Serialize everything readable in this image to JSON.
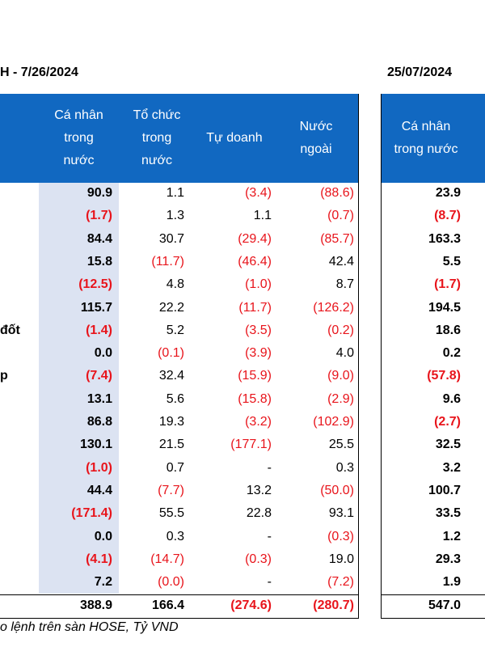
{
  "title_left": "H - 7/26/2024",
  "title_right": "25/07/2024",
  "headers_left": [
    "Cá nhân\ntrong\nnước",
    "Tổ chức\ntrong\nnước",
    "Tự doanh",
    "Nước\nngoài"
  ],
  "header_right": "Cá nhân\ntrong nước",
  "rows": [
    {
      "label": "",
      "c1": "90.9",
      "c2": "1.1",
      "c3": "(3.4)",
      "c4": "(88.6)",
      "c5": "23.9"
    },
    {
      "label": "",
      "c1": "(1.7)",
      "c2": "1.3",
      "c3": "1.1",
      "c4": "(0.7)",
      "c5": "(8.7)"
    },
    {
      "label": "",
      "c1": "84.4",
      "c2": "30.7",
      "c3": "(29.4)",
      "c4": "(85.7)",
      "c5": "163.3"
    },
    {
      "label": "",
      "c1": "15.8",
      "c2": "(11.7)",
      "c3": "(46.4)",
      "c4": "42.4",
      "c5": "5.5"
    },
    {
      "label": "",
      "c1": "(12.5)",
      "c2": "4.8",
      "c3": "(1.0)",
      "c4": "8.7",
      "c5": "(1.7)"
    },
    {
      "label": "",
      "c1": "115.7",
      "c2": "22.2",
      "c3": "(11.7)",
      "c4": "(126.2)",
      "c5": "194.5"
    },
    {
      "label": "đốt",
      "c1": "(1.4)",
      "c2": "5.2",
      "c3": "(3.5)",
      "c4": "(0.2)",
      "c5": "18.6"
    },
    {
      "label": "",
      "c1": "0.0",
      "c2": "(0.1)",
      "c3": "(3.9)",
      "c4": "4.0",
      "c5": "0.2"
    },
    {
      "label": "p",
      "c1": "(7.4)",
      "c2": "32.4",
      "c3": "(15.9)",
      "c4": "(9.0)",
      "c5": "(57.8)"
    },
    {
      "label": "",
      "c1": "13.1",
      "c2": "5.6",
      "c3": "(15.8)",
      "c4": "(2.9)",
      "c5": "9.6"
    },
    {
      "label": "",
      "c1": "86.8",
      "c2": "19.3",
      "c3": "(3.2)",
      "c4": "(102.9)",
      "c5": "(2.7)"
    },
    {
      "label": "",
      "c1": "130.1",
      "c2": "21.5",
      "c3": "(177.1)",
      "c4": "25.5",
      "c5": "32.5"
    },
    {
      "label": "",
      "c1": "(1.0)",
      "c2": "0.7",
      "c3": "-",
      "c4": "0.3",
      "c5": "3.2"
    },
    {
      "label": "",
      "c1": "44.4",
      "c2": "(7.7)",
      "c3": "13.2",
      "c4": "(50.0)",
      "c5": "100.7"
    },
    {
      "label": "",
      "c1": "(171.4)",
      "c2": "55.5",
      "c3": "22.8",
      "c4": "93.1",
      "c5": "33.5"
    },
    {
      "label": "",
      "c1": "0.0",
      "c2": "0.3",
      "c3": "-",
      "c4": "(0.3)",
      "c5": "1.2"
    },
    {
      "label": "",
      "c1": "(4.1)",
      "c2": "(14.7)",
      "c3": "(0.3)",
      "c4": "19.0",
      "c5": "29.3"
    },
    {
      "label": "",
      "c1": "7.2",
      "c2": "(0.0)",
      "c3": "-",
      "c4": "(7.2)",
      "c5": "1.9"
    }
  ],
  "total": {
    "c1": "388.9",
    "c2": "166.4",
    "c3": "(274.6)",
    "c4": "(280.7)",
    "c5": "547.0"
  },
  "footnote": "o lệnh trên sàn HOSE, Tỷ VND",
  "colors": {
    "header_bg": "#1168c1",
    "highlight_col": "#dce3f2",
    "negative": "#e8141b"
  }
}
